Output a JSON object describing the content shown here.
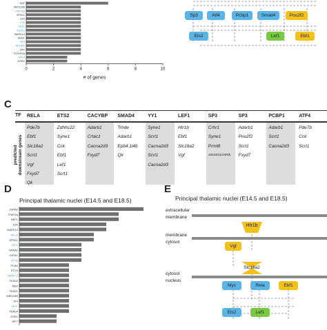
{
  "panels": {
    "C": "C",
    "D": "D",
    "E": "E"
  },
  "chartA": {
    "gene_labels": [
      {
        "text": "ZNF",
        "blue": false
      },
      {
        "text": "MIR133B",
        "blue": false
      },
      {
        "text": "ZNF436",
        "blue": true
      },
      {
        "text": "SP0D1",
        "blue": false
      },
      {
        "text": "JUN",
        "blue": false
      },
      {
        "text": "YY1",
        "blue": true
      },
      {
        "text": "LEF1",
        "blue": true
      },
      {
        "text": "SUZ12",
        "blue": true
      },
      {
        "text": "MAPK14",
        "blue": false
      },
      {
        "text": "ARNT",
        "blue": false
      },
      {
        "text": "SP3",
        "blue": true
      },
      {
        "text": "NCOR1",
        "blue": true
      },
      {
        "text": "ATF",
        "blue": false
      },
      {
        "text": "TCFAP2A",
        "blue": false
      },
      {
        "text": "ATF4",
        "blue": true
      },
      {
        "text": "EGR1",
        "blue": false
      }
    ],
    "values": [
      6,
      4,
      4,
      4,
      4,
      4,
      4,
      4,
      4,
      4,
      4,
      4,
      4,
      4,
      3,
      3
    ],
    "xlabel": "# of genes",
    "ticks": [
      "0",
      "2",
      "4",
      "6",
      "8",
      "10"
    ],
    "xmax": 10
  },
  "networkB": {
    "nodes": [
      {
        "label": "Sp3",
        "color": "#5ab4e6"
      },
      {
        "label": "Atf4",
        "color": "#5ab4e6"
      },
      {
        "label": "Pcbp1",
        "color": "#5ab4e6"
      },
      {
        "label": "Smad4",
        "color": "#5ab4e6"
      },
      {
        "label": "Pou2f2",
        "color": "#f2c21b"
      },
      {
        "label": "Ets2",
        "color": "#5ab4e6"
      },
      {
        "label": "Lef1",
        "color": "#7ac943"
      },
      {
        "label": "Ebf1",
        "color": "#f2c21b"
      }
    ]
  },
  "tableC": {
    "tf_label": "TF",
    "row_label": "predicted downstream genes",
    "columns": [
      {
        "tf": "RELA",
        "genes": [
          "Pde7b",
          "Ebf1",
          "Slc18a2",
          "Scrt1",
          "Vgf",
          "Fxyd7",
          "Qk"
        ],
        "shaded": true
      },
      {
        "tf": "ETS2",
        "genes": [
          "Zdhhc22",
          "Syne1",
          "Cck",
          "Ebf1",
          "Lef1",
          "Scrt1"
        ],
        "shaded": false
      },
      {
        "tf": "CACYBP",
        "genes": [
          "Adarb1",
          "Crtac1",
          "Cacna2d3",
          "Fxyd7"
        ],
        "shaded": true
      },
      {
        "tf": "SMAD4",
        "genes": [
          "Trhde",
          "Adarb1",
          "Epb4.1l4b",
          "Qk"
        ],
        "shaded": false
      },
      {
        "tf": "YY1",
        "genes": [
          "Syne1",
          "Scrt1",
          "Cacna2d3",
          "Scrt1",
          "Cacna2d3"
        ],
        "shaded": true
      },
      {
        "tf": "LEF1",
        "genes": [
          "Htr1b",
          "Ebf1",
          "Slc18a2",
          "Vgf"
        ],
        "shaded": false
      },
      {
        "tf": "SP3",
        "genes": [
          "Crhr1",
          "Syne1",
          "Prmt8",
          "1810041I15Rik"
        ],
        "shaded": true
      },
      {
        "tf": "SP3",
        "genes": [
          "Adarb1",
          "Pou2f2",
          "Scrt1",
          "Fxyd7"
        ],
        "shaded": false
      },
      {
        "tf": "PCBP1",
        "genes": [
          "Adarb1",
          "Scrt1",
          "Cacna2d3"
        ],
        "shaded": true
      },
      {
        "tf": "ATF4",
        "genes": [
          "Pde7b",
          "Cck",
          "Scrt1"
        ],
        "shaded": false
      }
    ]
  },
  "chartD": {
    "title": "Principal thalamic nuclei (E14.5 and E18.5)",
    "gene_labels": [
      {
        "text": "GATA2",
        "blue": false
      },
      {
        "text": "TFAP2A",
        "blue": false
      },
      {
        "text": "NEF1",
        "blue": false
      },
      {
        "text": "JUN",
        "blue": false
      },
      {
        "text": "MAPK14",
        "blue": false
      },
      {
        "text": "RELA",
        "blue": true
      },
      {
        "text": "SP0D1",
        "blue": false
      },
      {
        "text": "LEF1",
        "blue": true
      },
      {
        "text": "NR5A2",
        "blue": false
      },
      {
        "text": "GATA1",
        "blue": false
      },
      {
        "text": "ETS2",
        "blue": true
      },
      {
        "text": "PLAU",
        "blue": false
      },
      {
        "text": "ETV4",
        "blue": false
      },
      {
        "text": "NFATC1",
        "blue": true
      },
      {
        "text": "TEAD2",
        "blue": false
      },
      {
        "text": "MB2",
        "blue": false
      },
      {
        "text": "TEAD1",
        "blue": false
      },
      {
        "text": "MIR133B",
        "blue": false
      },
      {
        "text": "SIX",
        "blue": false
      },
      {
        "text": "MYC",
        "blue": true
      },
      {
        "text": "TEAD4",
        "blue": false
      },
      {
        "text": "ESR1",
        "blue": false
      },
      {
        "text": "IRF7",
        "blue": false
      }
    ],
    "values": [
      10,
      8,
      8,
      7,
      7,
      6,
      6,
      5,
      5,
      5,
      5,
      4,
      4,
      4,
      4,
      4,
      4,
      4,
      4,
      4,
      4,
      3,
      3
    ]
  },
  "pathwayE": {
    "title": "Principal thalamic nuclei (E14.5 and E18.5)",
    "extracellular": "extracellular",
    "membrane1": "membrane",
    "membrane2": "membrane",
    "cytosol1": "cytosol",
    "cytosol2": "cytosol",
    "nucleus": "nucleus",
    "htr1b": "Htr1b",
    "vgf": "Vgf",
    "slc18a2": "Slc18a2",
    "myc": "Myc",
    "rela": "Rela",
    "ebf1": "Ebf1",
    "ets2": "Ets2",
    "lef1": "Lef1",
    "colors": {
      "blue": "#5ab4e6",
      "yellow": "#f2c21b",
      "green": "#7ac943"
    }
  }
}
